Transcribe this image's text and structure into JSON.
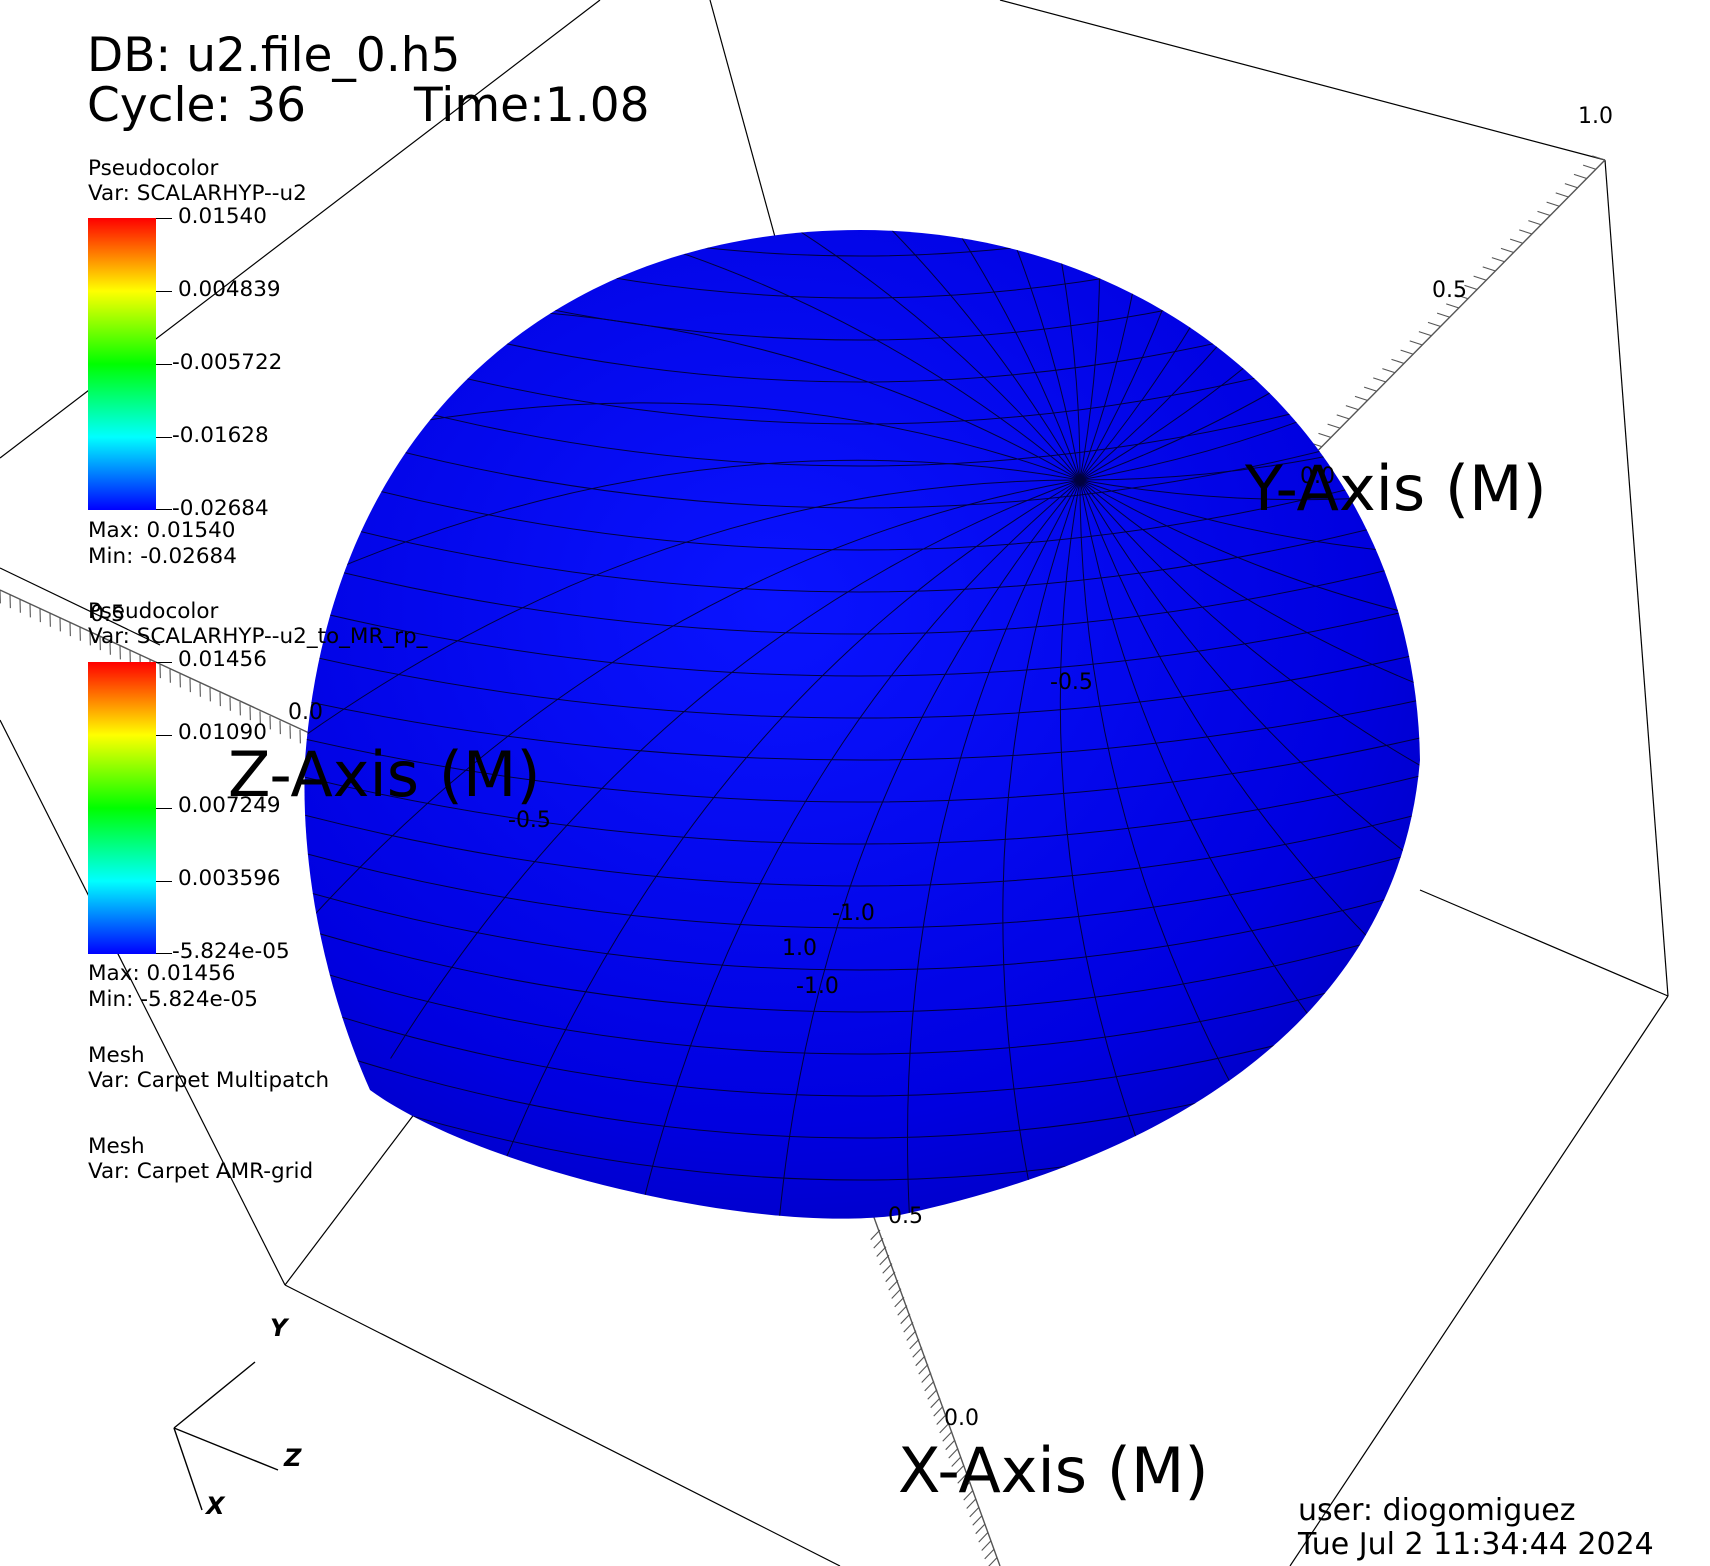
{
  "header": {
    "db": "DB: u2.file_0.h5",
    "cycle": "Cycle: 36",
    "time": "Time:1.08"
  },
  "legends": [
    {
      "plot": "Pseudocolor",
      "var": "Var: SCALARHYP--u2",
      "ticks": [
        "0.01540",
        "0.004839",
        "-0.005722",
        "-0.01628",
        "-0.02684"
      ],
      "max": "Max:  0.01540",
      "min": "Min: -0.02684"
    },
    {
      "plot": "Pseudocolor",
      "var": "Var: SCALARHYP--u2_to_MR_rp_",
      "ticks": [
        "0.01456",
        "0.01090",
        "0.007249",
        "0.003596",
        "-5.824e-05"
      ],
      "max": "Max:  0.01456",
      "min": "Min: -5.824e-05"
    }
  ],
  "meshes": [
    {
      "plot": "Mesh",
      "var": "Var: Carpet Multipatch"
    },
    {
      "plot": "Mesh",
      "var": "Var: Carpet AMR-grid"
    }
  ],
  "colormap": [
    "#ff0000",
    "#ffff00",
    "#00ff00",
    "#00ffff",
    "#0000ff"
  ],
  "surface_color": "#0000e6",
  "axes": {
    "x_title": "X-Axis (M)",
    "y_title": "Y-Axis (M)",
    "z_title": "Z-Axis (M)",
    "y_ticks": [
      "1.0",
      "0.5",
      "0.0",
      "-0.5",
      "-1.0"
    ],
    "z_ticks": [
      "0.5",
      "0.0",
      "-0.5",
      "-1.0"
    ],
    "x_ticks": [
      "1.0",
      "0.5",
      "0.0"
    ]
  },
  "triad": {
    "x": "X",
    "y": "Y",
    "z": "Z"
  },
  "footer": {
    "user": "user: diogomiguez",
    "date": "Tue Jul  2 11:34:44 2024"
  }
}
